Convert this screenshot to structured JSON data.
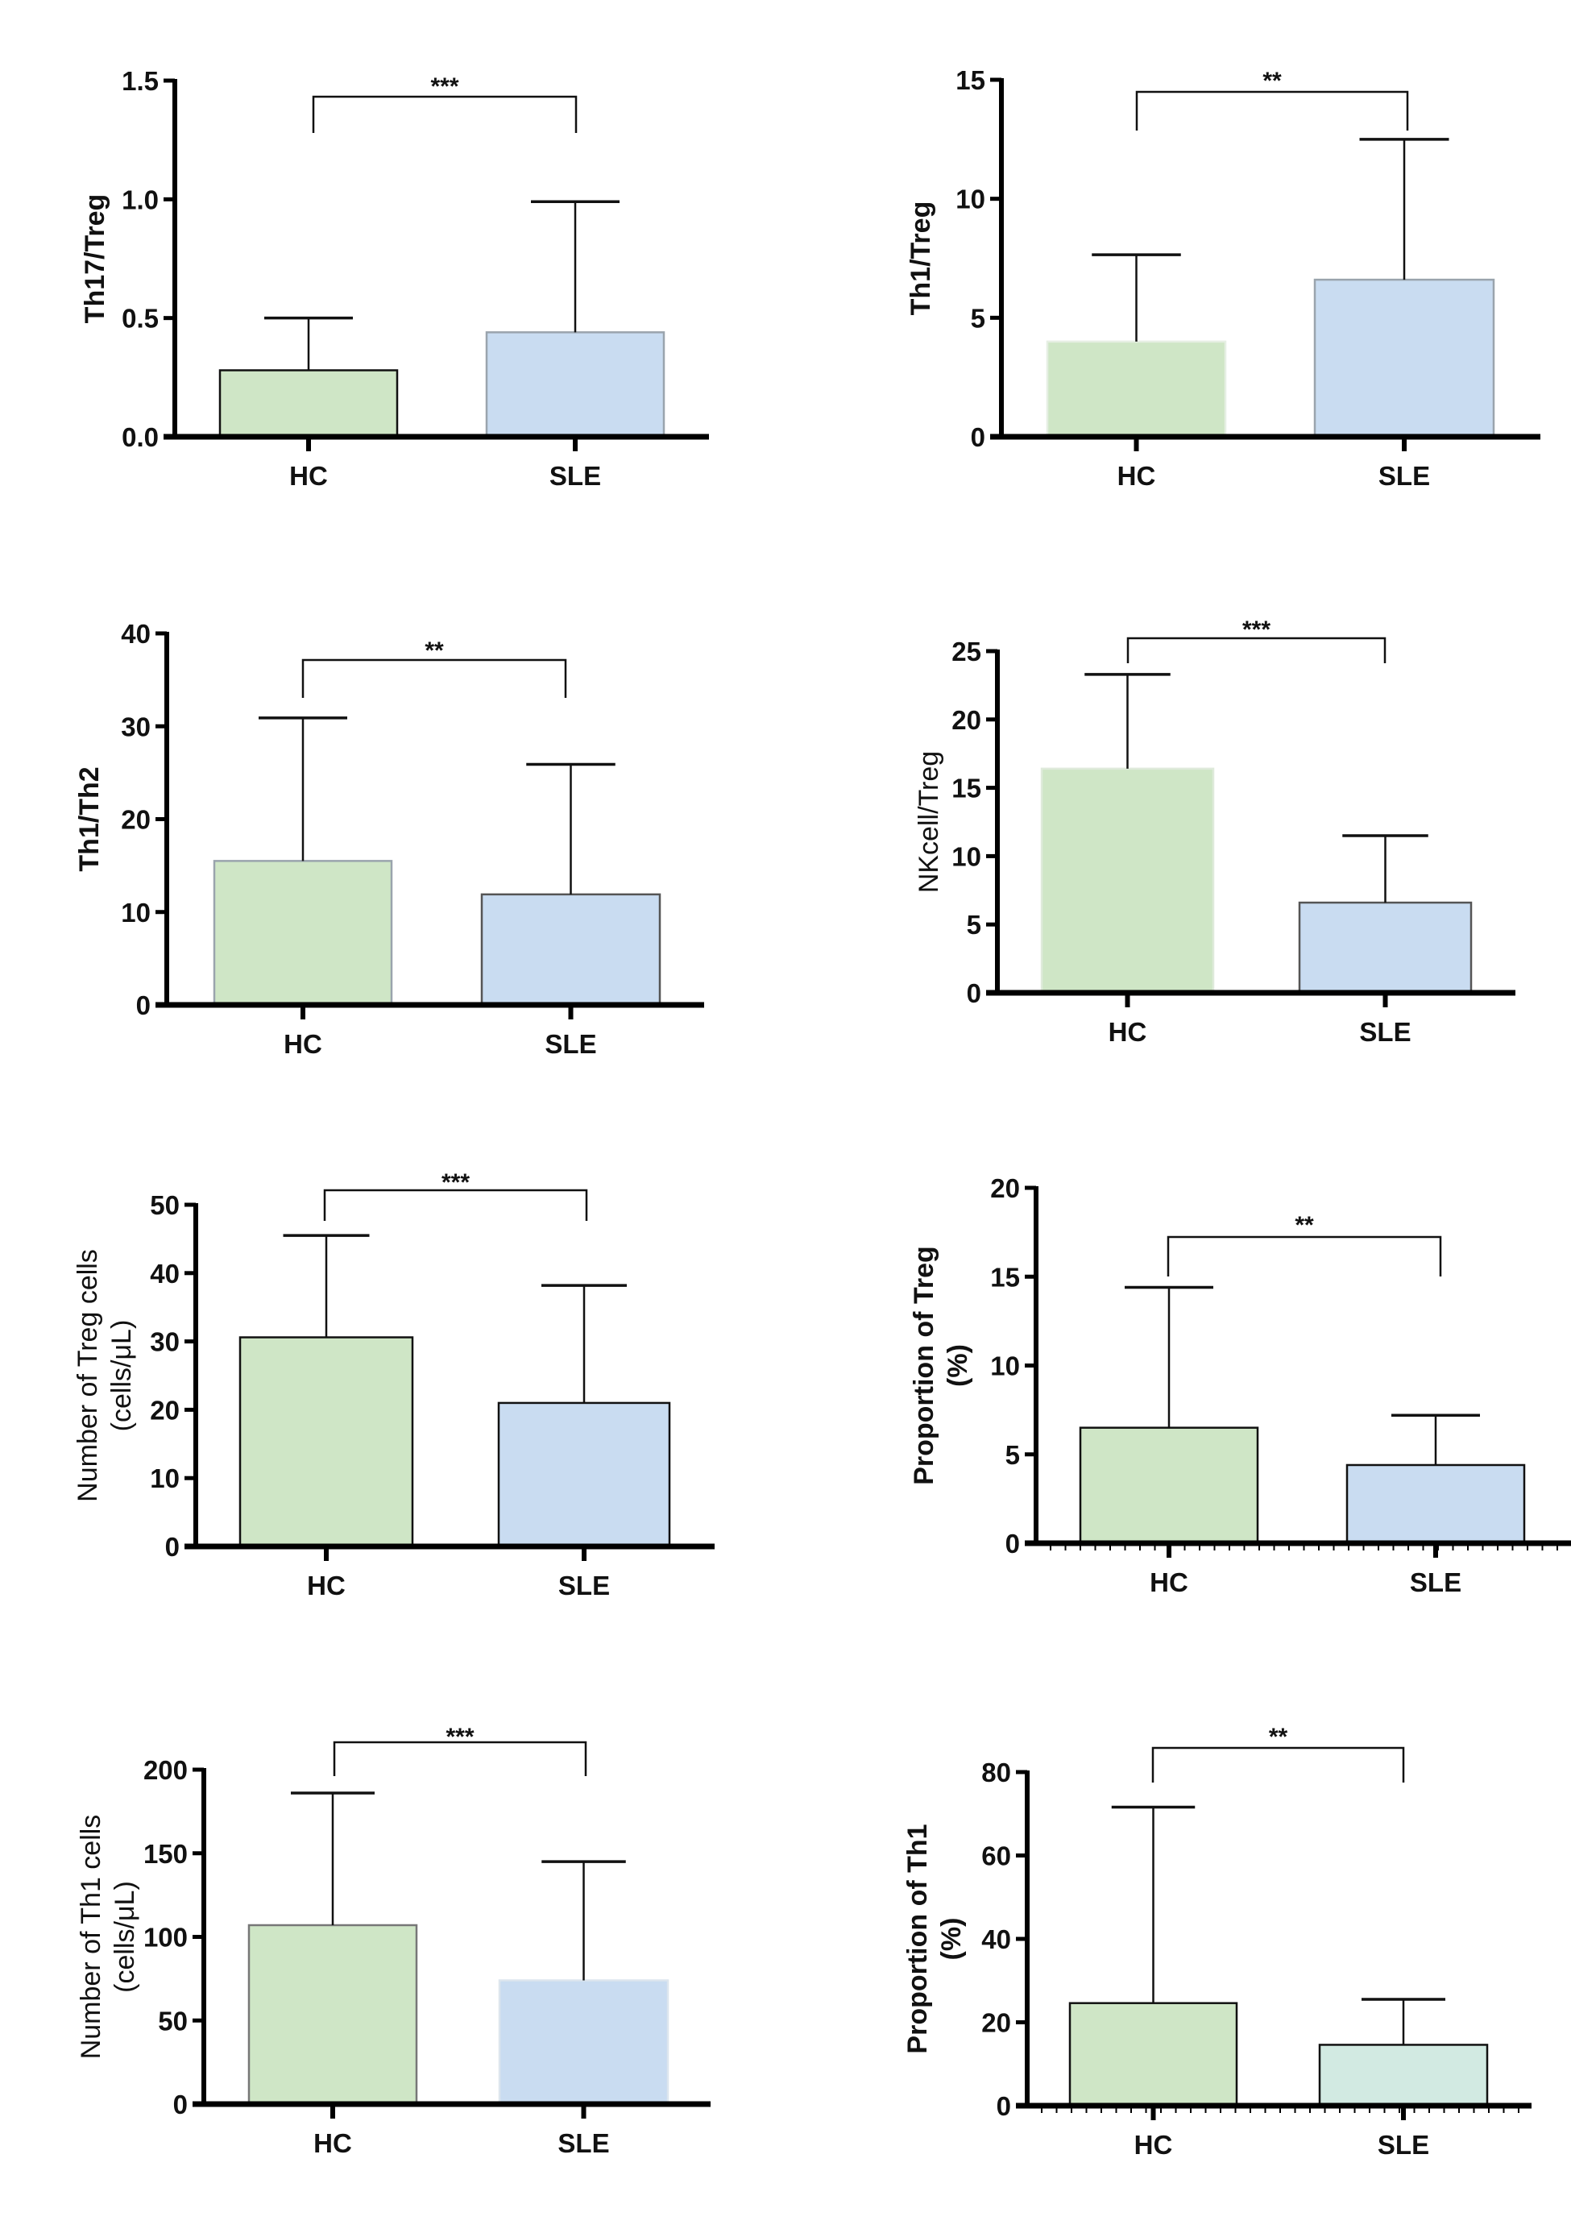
{
  "chart_data": [
    {
      "type": "bar",
      "title": "",
      "xlabel": "",
      "ylabel": "Th17/Treg",
      "ylabel_bold": true,
      "categories": [
        "HC",
        "SLE"
      ],
      "values": [
        0.28,
        0.44
      ],
      "error_upper": [
        0.5,
        0.99
      ],
      "ylim": [
        0,
        1.5
      ],
      "yticks": [
        "0.0",
        "0.5",
        "1.0",
        "1.5"
      ],
      "ytick_values": [
        0,
        0.5,
        1.0,
        1.5
      ],
      "significance": "***",
      "colors": [
        "#cfe6c6",
        "#c9dcf1"
      ],
      "edge_colors": [
        "#111111",
        "#9aa4ad"
      ],
      "minor_ticks": false,
      "grid": false
    },
    {
      "type": "bar",
      "title": "",
      "xlabel": "",
      "ylabel": "Th1/Treg",
      "ylabel_bold": true,
      "categories": [
        "HC",
        "SLE"
      ],
      "values": [
        4.0,
        6.6
      ],
      "error_upper": [
        7.65,
        12.5
      ],
      "ylim": [
        0,
        15
      ],
      "yticks": [
        "0",
        "5",
        "10",
        "15"
      ],
      "ytick_values": [
        0,
        5,
        10,
        15
      ],
      "significance": "**",
      "colors": [
        "#cfe6c6",
        "#c9dcf1"
      ],
      "edge_colors": [
        "#e6efe3",
        "#9aa4ad"
      ],
      "minor_ticks": false,
      "grid": false
    },
    {
      "type": "bar",
      "title": "",
      "xlabel": "",
      "ylabel": "Th1/Th2",
      "ylabel_bold": true,
      "categories": [
        "HC",
        "SLE"
      ],
      "values": [
        15.5,
        11.9
      ],
      "error_upper": [
        30.9,
        25.9
      ],
      "ylim": [
        0,
        40
      ],
      "yticks": [
        "0",
        "10",
        "20",
        "30",
        "40"
      ],
      "ytick_values": [
        0,
        10,
        20,
        30,
        40
      ],
      "significance": "**",
      "colors": [
        "#cfe6c6",
        "#c9dcf1"
      ],
      "edge_colors": [
        "#9aa4ad",
        "#555555"
      ],
      "minor_ticks": false,
      "grid": false
    },
    {
      "type": "bar",
      "title": "",
      "xlabel": "",
      "ylabel": "NKcell/Treg",
      "ylabel_bold": false,
      "categories": [
        "HC",
        "SLE"
      ],
      "values": [
        16.4,
        6.6
      ],
      "error_upper": [
        23.3,
        11.5
      ],
      "ylim": [
        0,
        25
      ],
      "yticks": [
        "0",
        "5",
        "10",
        "15",
        "20",
        "25"
      ],
      "ytick_values": [
        0,
        5,
        10,
        15,
        20,
        25
      ],
      "significance": "***",
      "colors": [
        "#cfe6c6",
        "#c9dcf1"
      ],
      "edge_colors": [
        "#dfeadb",
        "#555555"
      ],
      "minor_ticks": false,
      "grid": false
    },
    {
      "type": "bar",
      "title": "",
      "xlabel": "",
      "ylabel": "Number of Treg cells",
      "ylabel_line2": "(cells/μL)",
      "ylabel_bold": false,
      "categories": [
        "HC",
        "SLE"
      ],
      "values": [
        30.6,
        21.0
      ],
      "error_upper": [
        45.5,
        38.2
      ],
      "ylim": [
        0,
        50
      ],
      "yticks": [
        "0",
        "10",
        "20",
        "30",
        "40",
        "50"
      ],
      "ytick_values": [
        0,
        10,
        20,
        30,
        40,
        50
      ],
      "significance": "***",
      "colors": [
        "#cfe6c6",
        "#c9dcf1"
      ],
      "edge_colors": [
        "#111111",
        "#111111"
      ],
      "minor_ticks": false,
      "grid": false
    },
    {
      "type": "bar",
      "title": "",
      "xlabel": "",
      "ylabel": "Proportion of Treg",
      "ylabel_line2": "(%)",
      "ylabel_bold": true,
      "categories": [
        "HC",
        "SLE"
      ],
      "values": [
        6.5,
        4.4
      ],
      "error_upper": [
        14.4,
        7.2
      ],
      "ylim": [
        0,
        20
      ],
      "yticks": [
        "0",
        "5",
        "10",
        "15",
        "20"
      ],
      "ytick_values": [
        0,
        5,
        10,
        15,
        20
      ],
      "significance": "**",
      "colors": [
        "#cfe6c6",
        "#c9dcf1"
      ],
      "edge_colors": [
        "#111111",
        "#111111"
      ],
      "minor_ticks": true,
      "grid": false
    },
    {
      "type": "bar",
      "title": "",
      "xlabel": "",
      "ylabel": "Number of Th1 cells",
      "ylabel_line2": "(cells/μL)",
      "ylabel_bold": false,
      "categories": [
        "HC",
        "SLE"
      ],
      "values": [
        107,
        74
      ],
      "error_upper": [
        186,
        145
      ],
      "ylim": [
        0,
        200
      ],
      "yticks": [
        "0",
        "50",
        "100",
        "150",
        "200"
      ],
      "ytick_values": [
        0,
        50,
        100,
        150,
        200
      ],
      "significance": "***",
      "colors": [
        "#cfe6c6",
        "#c9dcf1"
      ],
      "edge_colors": [
        "#777777",
        "#dde6ee"
      ],
      "minor_ticks": false,
      "grid": false
    },
    {
      "type": "bar",
      "title": "",
      "xlabel": "",
      "ylabel": "Proportion of Th1",
      "ylabel_line2": "(%)",
      "ylabel_bold": true,
      "categories": [
        "HC",
        "SLE"
      ],
      "values": [
        24.6,
        14.6
      ],
      "error_upper": [
        71.6,
        25.5
      ],
      "ylim": [
        0,
        80
      ],
      "yticks": [
        "0",
        "20",
        "40",
        "60",
        "80"
      ],
      "ytick_values": [
        0,
        20,
        40,
        60,
        80
      ],
      "significance": "**",
      "colors": [
        "#cfe6c6",
        "#d2eae2"
      ],
      "edge_colors": [
        "#111111",
        "#111111"
      ],
      "minor_ticks": true,
      "grid": false
    }
  ]
}
